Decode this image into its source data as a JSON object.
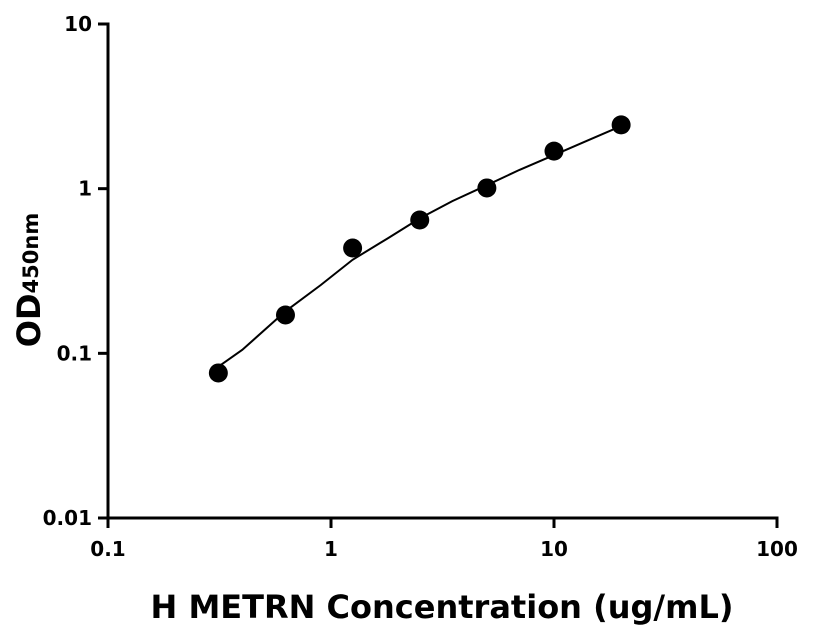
{
  "chart_data": {
    "type": "scatter",
    "xlabel": "H METRN Concentration (ug/mL)",
    "ylabel": {
      "text": "OD",
      "subscript": "450nm"
    },
    "x": [
      0.3125,
      0.625,
      1.25,
      2.5,
      5,
      10,
      20
    ],
    "values": [
      0.076,
      0.171,
      0.436,
      0.645,
      1.01,
      1.69,
      2.44
    ],
    "color": "#000000",
    "fit": {
      "x": [
        0.3125,
        0.4,
        0.625,
        0.9,
        1.25,
        1.8,
        2.5,
        3.5,
        5,
        7,
        10,
        14,
        20
      ],
      "values": [
        0.083,
        0.105,
        0.18,
        0.26,
        0.37,
        0.5,
        0.66,
        0.84,
        1.05,
        1.3,
        1.6,
        1.95,
        2.4
      ]
    },
    "xscale": "log",
    "yscale": "log",
    "xlim": [
      0.1,
      100
    ],
    "ylim": [
      0.01,
      10
    ],
    "xticks": [
      0.1,
      1,
      10,
      100
    ],
    "yticks": [
      0.01,
      0.1,
      1,
      10
    ]
  }
}
